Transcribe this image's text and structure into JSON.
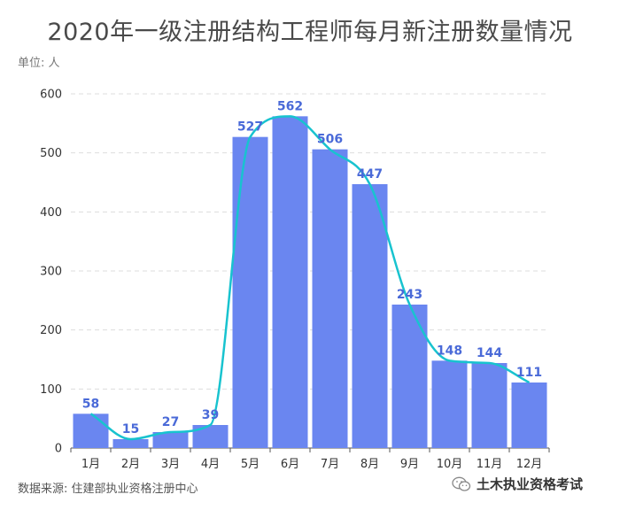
{
  "title": "2020年一级注册结构工程师每月新注册数量情况",
  "unit_label": "单位: 人",
  "source": "数据来源: 住建部执业资格注册中心",
  "watermark": "土木执业资格考试",
  "colors": {
    "bar": "#6a86f0",
    "line": "#18c3cf",
    "label": "#4a6ad8",
    "grid": "#dddddd"
  },
  "chart_data": {
    "type": "bar",
    "categories": [
      "1月",
      "2月",
      "3月",
      "4月",
      "5月",
      "6月",
      "7月",
      "8月",
      "9月",
      "10月",
      "11月",
      "12月"
    ],
    "values": [
      58,
      15,
      27,
      39,
      527,
      562,
      506,
      447,
      243,
      148,
      144,
      111
    ],
    "overlay": "smooth-line",
    "title": "2020年一级注册结构工程师每月新注册数量情况",
    "ylabel": "单位: 人",
    "ylim": [
      0,
      600
    ],
    "yticks": [
      0,
      100,
      200,
      300,
      400,
      500,
      600
    ],
    "grid": true
  }
}
